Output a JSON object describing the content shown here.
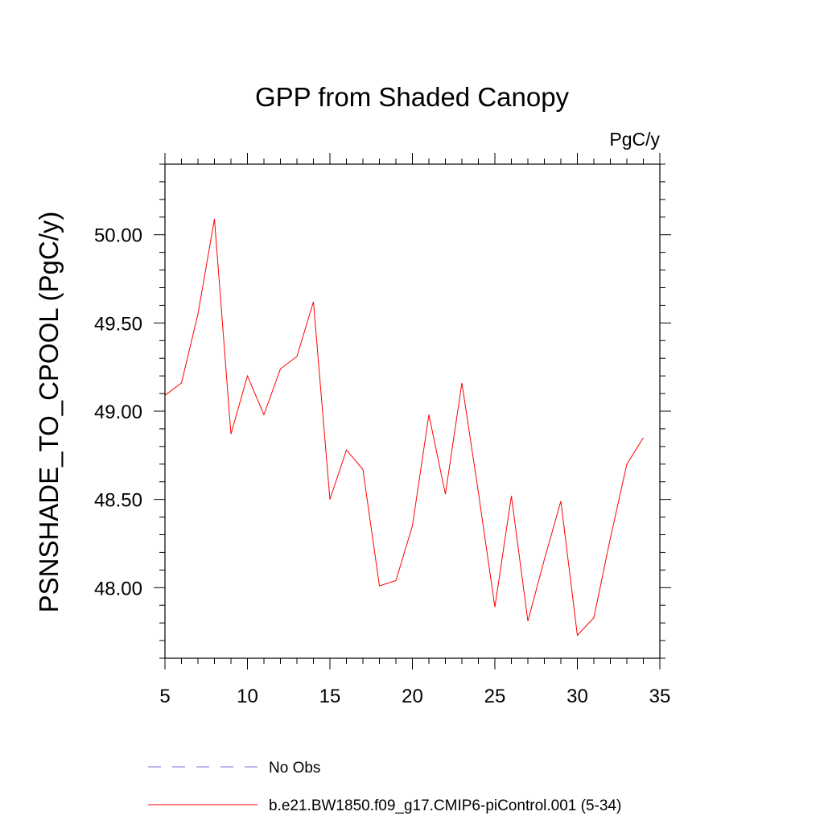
{
  "chart_data": {
    "type": "line",
    "title": "GPP from Shaded Canopy",
    "units_label": "PgC/y",
    "ylabel": "PSNSHADE_TO_CPOOL  (PgC/y)",
    "xlabel": "",
    "xlim": [
      5,
      35
    ],
    "ylim": [
      47.6,
      50.4
    ],
    "x_ticks": [
      5,
      10,
      15,
      20,
      25,
      30,
      35
    ],
    "x_tick_labels": [
      "5",
      "10",
      "15",
      "20",
      "25",
      "30",
      "35"
    ],
    "y_ticks": [
      48.0,
      48.5,
      49.0,
      49.5,
      50.0
    ],
    "y_tick_labels": [
      "48.00",
      "48.50",
      "49.00",
      "49.50",
      "50.00"
    ],
    "grid": false,
    "legend_position": "bottom-left",
    "series": [
      {
        "name": "No Obs",
        "color": "#7a6fd6",
        "dash": "dashed",
        "x": [],
        "y": []
      },
      {
        "name": "b.e21.BW1850.f09_g17.CMIP6-piControl.001 (5-34)",
        "color": "#ff0000",
        "dash": "solid",
        "x": [
          5,
          6,
          7,
          8,
          9,
          10,
          11,
          12,
          13,
          14,
          15,
          16,
          17,
          18,
          19,
          20,
          21,
          22,
          23,
          24,
          25,
          26,
          27,
          28,
          29,
          30,
          31,
          32,
          33,
          34
        ],
        "y": [
          49.09,
          49.16,
          49.55,
          50.09,
          48.87,
          49.2,
          48.98,
          49.24,
          49.31,
          49.62,
          48.5,
          48.78,
          48.67,
          48.01,
          48.04,
          48.35,
          48.98,
          48.53,
          49.16,
          48.54,
          47.89,
          48.52,
          47.81,
          48.16,
          48.49,
          47.73,
          47.83,
          48.28,
          48.7,
          48.85
        ]
      }
    ]
  }
}
